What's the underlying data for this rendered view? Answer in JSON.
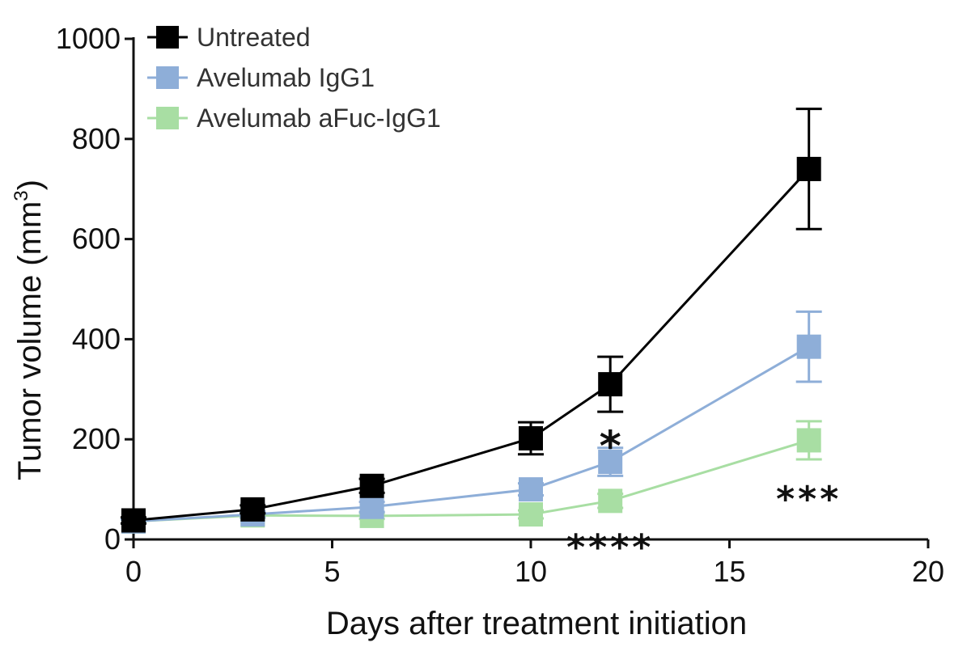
{
  "chart_data": {
    "type": "line",
    "xlabel": "Days after treatment initiation",
    "ylabel": "Tumor volume (mm",
    "ylabel_sup": "3",
    "ylabel_close": ")",
    "xlim": [
      0,
      20
    ],
    "ylim": [
      0,
      1000
    ],
    "x_ticks": [
      0,
      5,
      10,
      15,
      20
    ],
    "x_tick_labels": [
      "0",
      "5",
      "10",
      "15",
      "20"
    ],
    "y_ticks": [
      0,
      200,
      400,
      600,
      800,
      1000
    ],
    "y_tick_labels": [
      "0",
      "200",
      "400",
      "600",
      "800",
      "1000"
    ],
    "grid": false,
    "legend_position": "top-left",
    "series": [
      {
        "name": "Untreated",
        "color": "#000000",
        "marker": "square",
        "x": [
          0,
          3,
          6,
          10,
          12,
          17
        ],
        "y": [
          38,
          60,
          107,
          202,
          310,
          740
        ],
        "err": [
          6,
          8,
          14,
          32,
          55,
          120
        ]
      },
      {
        "name": "Avelumab IgG1",
        "color": "#8eaed8",
        "marker": "square",
        "x": [
          0,
          3,
          6,
          10,
          12,
          17
        ],
        "y": [
          36,
          50,
          65,
          100,
          155,
          385
        ],
        "err": [
          4,
          6,
          10,
          12,
          28,
          70
        ]
      },
      {
        "name": "Avelumab aFuc-IgG1",
        "color": "#a8dea3",
        "marker": "square",
        "x": [
          0,
          3,
          6,
          10,
          12,
          17
        ],
        "y": [
          36,
          48,
          47,
          50,
          77,
          198
        ],
        "err": [
          4,
          5,
          6,
          8,
          14,
          38
        ]
      }
    ],
    "annotations": [
      {
        "text": "*",
        "x": 12,
        "y": 218,
        "size": "large"
      },
      {
        "text": "****",
        "x": 12,
        "y": 12,
        "size": "small"
      },
      {
        "text": "***",
        "x": 17,
        "y": 108,
        "size": "small"
      }
    ]
  }
}
